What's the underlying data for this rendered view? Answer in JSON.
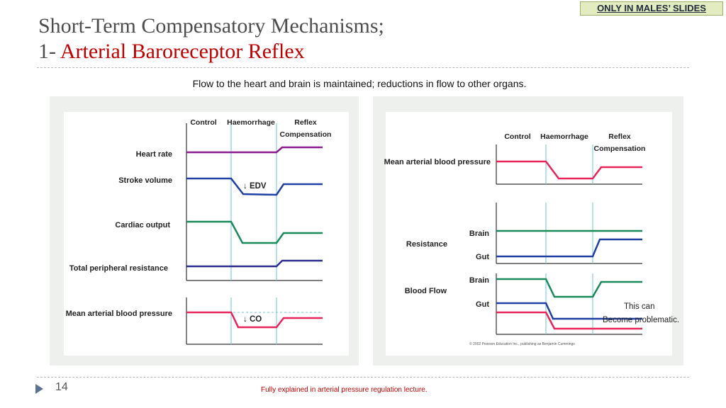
{
  "badge": "ONLY IN MALES’ SLIDES",
  "title": {
    "line1": "Short-Term Compensatory Mechanisms;",
    "prefix": "1-",
    "highlight": "Arterial Baroreceptor Reflex"
  },
  "subtitle": "Flow to the heart and brain is maintained; reductions in flow to other organs.",
  "left_diagram": {
    "phases": [
      "Control",
      "Haemorrhage",
      "Reflex",
      "Compensation"
    ],
    "rows": [
      "Heart rate",
      "Stroke volume",
      "Cardiac output",
      "Total peripheral resistance",
      "Mean arterial blood pressure"
    ],
    "annotations": {
      "edv": "↓ EDV",
      "co": "↓ CO"
    }
  },
  "right_diagram": {
    "phases": [
      "Control",
      "Haemorrhage",
      "Reflex",
      "Compensation"
    ],
    "labels": {
      "map": "Mean arterial blood pressure",
      "resistance": "Resistance",
      "blood_flow": "Blood Flow",
      "brain": "Brain",
      "gut": "Gut"
    },
    "note_line1": "This can",
    "note_line2": "Become problematic.",
    "copyright": "© 2002 Pearson Education Inc., publishing as Benjamin Cummings"
  },
  "colors": {
    "purple": "#8a1c8f",
    "blue": "#1f3fa3",
    "green": "#1b8a5a",
    "navy": "#2a2a8a",
    "red": "#e8245a",
    "cyan": "#6cc6d8"
  },
  "footer": {
    "page_number": "14",
    "note": "Fully explained in arterial pressure regulation lecture."
  }
}
